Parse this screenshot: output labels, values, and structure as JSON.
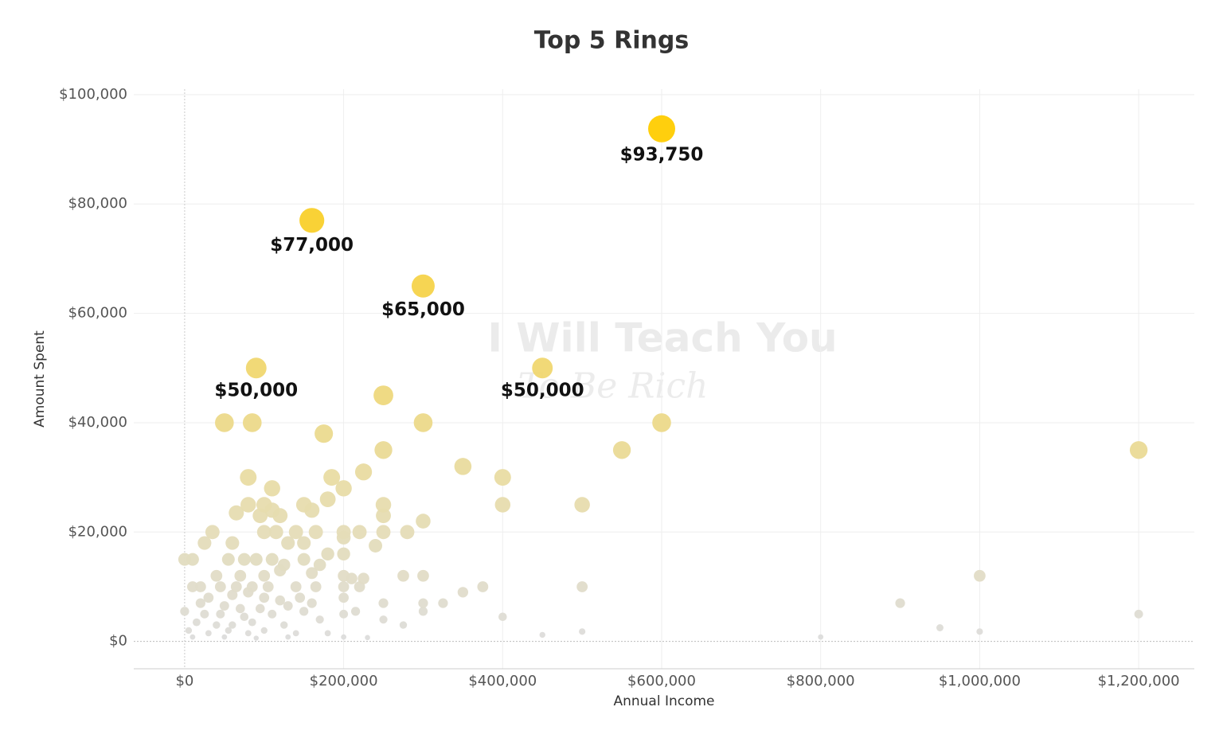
{
  "chart_data": {
    "type": "scatter",
    "title": "Top 5 Rings",
    "x_label": "Annual Income",
    "y_label": "Amount Spent",
    "watermark": [
      "I Will Teach You",
      "To Be Rich"
    ],
    "xlim": [
      -64000,
      1270000
    ],
    "ylim": [
      -5000,
      101000
    ],
    "xticks": [
      {
        "value": 0,
        "label": "$0"
      },
      {
        "value": 200000,
        "label": "$200,000"
      },
      {
        "value": 400000,
        "label": "$400,000"
      },
      {
        "value": 600000,
        "label": "$600,000"
      },
      {
        "value": 800000,
        "label": "$800,000"
      },
      {
        "value": 1000000,
        "label": "$1,000,000"
      },
      {
        "value": 1200000,
        "label": "$1,200,000"
      }
    ],
    "yticks": [
      {
        "value": 0,
        "label": "$0"
      },
      {
        "value": 20000,
        "label": "$20,000"
      },
      {
        "value": 40000,
        "label": "$40,000"
      },
      {
        "value": 60000,
        "label": "$60,000"
      },
      {
        "value": 80000,
        "label": "$80,000"
      },
      {
        "value": 100000,
        "label": "$100,000"
      }
    ],
    "grid": true,
    "color_scale": [
      "#dcdcdc",
      "#e8dca8",
      "#ffcc00"
    ],
    "x": [
      600000,
      160000,
      300000,
      90000,
      450000,
      50000,
      85000,
      175000,
      250000,
      300000,
      600000,
      250000,
      550000,
      1200000,
      350000,
      225000,
      80000,
      185000,
      400000,
      110000,
      200000,
      180000,
      250000,
      400000,
      500000,
      80000,
      100000,
      110000,
      150000,
      160000,
      65000,
      95000,
      120000,
      250000,
      300000,
      35000,
      100000,
      115000,
      140000,
      165000,
      200000,
      220000,
      250000,
      280000,
      25000,
      60000,
      130000,
      150000,
      200000,
      240000,
      0,
      10000,
      55000,
      75000,
      90000,
      110000,
      150000,
      180000,
      200000,
      125000,
      170000,
      40000,
      70000,
      100000,
      120000,
      160000,
      200000,
      210000,
      225000,
      275000,
      300000,
      1000000,
      10000,
      20000,
      45000,
      65000,
      85000,
      105000,
      140000,
      165000,
      200000,
      220000,
      375000,
      500000,
      30000,
      60000,
      80000,
      100000,
      120000,
      145000,
      200000,
      350000,
      900000,
      20000,
      50000,
      70000,
      95000,
      130000,
      160000,
      250000,
      300000,
      325000,
      0,
      25000,
      45000,
      75000,
      110000,
      150000,
      200000,
      215000,
      300000,
      400000,
      1200000,
      15000,
      40000,
      60000,
      85000,
      125000,
      170000,
      250000,
      275000,
      950000,
      5000,
      30000,
      55000,
      80000,
      100000,
      140000,
      180000,
      500000,
      1000000,
      10000,
      50000,
      90000,
      130000,
      200000,
      230000,
      450000,
      800000
    ],
    "values": [
      93750,
      77000,
      65000,
      50000,
      50000,
      40000,
      40000,
      38000,
      45000,
      40000,
      40000,
      35000,
      35000,
      35000,
      32000,
      31000,
      30000,
      30000,
      30000,
      28000,
      28000,
      26000,
      25000,
      25000,
      25000,
      25000,
      25000,
      24000,
      25000,
      24000,
      23500,
      23000,
      23000,
      23000,
      22000,
      20000,
      20000,
      20000,
      20000,
      20000,
      20000,
      20000,
      20000,
      20000,
      18000,
      18000,
      18000,
      18000,
      19000,
      17500,
      15000,
      15000,
      15000,
      15000,
      15000,
      15000,
      15000,
      16000,
      16000,
      14000,
      14000,
      12000,
      12000,
      12000,
      13000,
      12500,
      12000,
      11500,
      11500,
      12000,
      12000,
      12000,
      10000,
      10000,
      10000,
      10000,
      10000,
      10000,
      10000,
      10000,
      10000,
      10000,
      10000,
      10000,
      8000,
      8500,
      9000,
      8000,
      7500,
      8000,
      8000,
      9000,
      7000,
      7000,
      6500,
      6000,
      6000,
      6500,
      7000,
      7000,
      7000,
      7000,
      5500,
      5000,
      5000,
      4500,
      5000,
      5500,
      5000,
      5500,
      5500,
      4500,
      5000,
      3500,
      3000,
      3000,
      3500,
      3000,
      4000,
      4000,
      3000,
      2500,
      2000,
      1500,
      2000,
      1500,
      2000,
      1500,
      1500,
      1800,
      1800,
      800,
      800,
      600,
      800,
      800,
      700,
      1200,
      800
    ],
    "value_labels": [
      "$93,750",
      "$77,000",
      "$65,000",
      "$50,000",
      "$50,000",
      null,
      null,
      null,
      null,
      null,
      null,
      null,
      null,
      null,
      null,
      null,
      null,
      null,
      null,
      null,
      null,
      null,
      null,
      null,
      null,
      null,
      null,
      null,
      null,
      null,
      null,
      null,
      null,
      null,
      null,
      null,
      null,
      null,
      null,
      null,
      null,
      null,
      null,
      null,
      null,
      null,
      null,
      null,
      null,
      null,
      null,
      null,
      null,
      null,
      null,
      null,
      null,
      null,
      null,
      null,
      null,
      null,
      null,
      null,
      null,
      null,
      null,
      null,
      null,
      null,
      null,
      null,
      null,
      null,
      null,
      null,
      null,
      null,
      null,
      null,
      null,
      null,
      null,
      null,
      null,
      null,
      null,
      null,
      null,
      null,
      null,
      null,
      null,
      null,
      null,
      null,
      null,
      null,
      null,
      null,
      null,
      null,
      null,
      null,
      null,
      null,
      null,
      null,
      null,
      null,
      null,
      null,
      null,
      null,
      null,
      null,
      null,
      null,
      null,
      null,
      null,
      null,
      null,
      null,
      null,
      null,
      null,
      null,
      null,
      null,
      null,
      null,
      null,
      null,
      null,
      null,
      null,
      null,
      null
    ]
  }
}
